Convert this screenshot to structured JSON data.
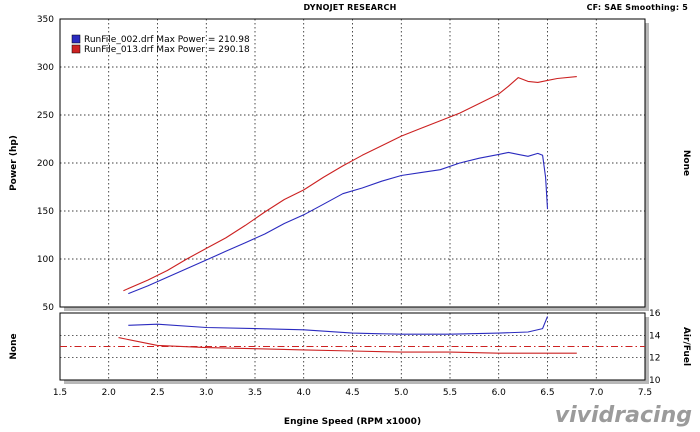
{
  "header": {
    "title": "DYNOJET RESEARCH",
    "settings": "CF: SAE  Smoothing: 5"
  },
  "watermark": "vividracing",
  "colors": {
    "run_002": "#2b2bbf",
    "run_013": "#cc2222",
    "grid": "#000000",
    "afr_target": "#cc2222"
  },
  "chart_data": [
    {
      "type": "line",
      "panel": "power",
      "xlabel": "Engine Speed (RPM x1000)",
      "ylabel": "Power (hp)",
      "y2label": "None",
      "xlim": [
        1.5,
        7.5
      ],
      "ylim": [
        50,
        350
      ],
      "xticks": [
        "1.5",
        "2.0",
        "2.5",
        "3.0",
        "3.5",
        "4.0",
        "4.5",
        "5.0",
        "5.5",
        "6.0",
        "6.5",
        "7.0",
        "7.5"
      ],
      "yticks": [
        "50",
        "100",
        "150",
        "200",
        "250",
        "300",
        "350"
      ],
      "grid": true,
      "legend_position": "top-left",
      "series": [
        {
          "name": "RunFile_002.drf Max Power = 210.98",
          "color": "#2b2bbf",
          "x": [
            2.2,
            2.4,
            2.6,
            2.8,
            3.0,
            3.2,
            3.4,
            3.6,
            3.8,
            4.0,
            4.2,
            4.4,
            4.6,
            4.8,
            5.0,
            5.2,
            5.4,
            5.6,
            5.8,
            6.0,
            6.1,
            6.2,
            6.3,
            6.4,
            6.45,
            6.48,
            6.5
          ],
          "y": [
            64,
            72,
            81,
            90,
            99,
            108,
            117,
            126,
            137,
            146,
            157,
            168,
            174,
            181,
            187,
            190,
            193,
            200,
            205,
            209,
            211,
            209,
            207,
            210,
            208,
            185,
            152
          ]
        },
        {
          "name": "RunFile_013.drf Max Power = 290.18",
          "color": "#cc2222",
          "x": [
            2.15,
            2.4,
            2.6,
            2.8,
            3.0,
            3.2,
            3.4,
            3.6,
            3.8,
            4.0,
            4.2,
            4.4,
            4.6,
            4.8,
            5.0,
            5.2,
            5.4,
            5.6,
            5.8,
            6.0,
            6.1,
            6.2,
            6.3,
            6.4,
            6.5,
            6.6,
            6.8
          ],
          "y": [
            67,
            78,
            88,
            100,
            111,
            122,
            135,
            149,
            162,
            172,
            185,
            197,
            208,
            218,
            228,
            236,
            244,
            252,
            262,
            272,
            280,
            289,
            285,
            284,
            286,
            288,
            290
          ]
        }
      ]
    },
    {
      "type": "line",
      "panel": "air_fuel",
      "xlabel": "Engine Speed (RPM x1000)",
      "ylabel": "None",
      "y2label": "Air/Fuel",
      "xlim": [
        1.5,
        7.5
      ],
      "ylim": [
        10,
        16
      ],
      "yticks": [
        "10",
        "12",
        "14",
        "16"
      ],
      "grid": true,
      "reference_line": 13,
      "series": [
        {
          "name": "RunFile_002.drf",
          "color": "#2b2bbf",
          "x": [
            2.2,
            2.5,
            3.0,
            3.5,
            4.0,
            4.5,
            5.0,
            5.5,
            6.0,
            6.3,
            6.45,
            6.5
          ],
          "y": [
            14.9,
            15.0,
            14.7,
            14.6,
            14.5,
            14.2,
            14.1,
            14.1,
            14.2,
            14.3,
            14.6,
            15.7
          ]
        },
        {
          "name": "RunFile_013.drf",
          "color": "#cc2222",
          "x": [
            2.1,
            2.5,
            3.0,
            3.5,
            4.0,
            4.5,
            5.0,
            5.5,
            6.0,
            6.5,
            6.8
          ],
          "y": [
            13.8,
            13.1,
            12.9,
            12.8,
            12.7,
            12.6,
            12.5,
            12.5,
            12.4,
            12.4,
            12.4
          ]
        }
      ]
    }
  ]
}
